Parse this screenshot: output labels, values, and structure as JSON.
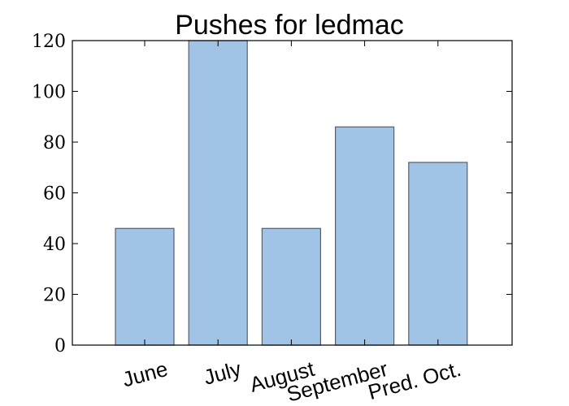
{
  "chart_data": {
    "type": "bar",
    "title": "Pushes for ledmac",
    "xlabel": "",
    "ylabel": "",
    "categories": [
      "June",
      "July",
      "August",
      "September",
      "Pred. Oct."
    ],
    "values": [
      46,
      120,
      46,
      86,
      72
    ],
    "ylim": [
      0,
      120
    ],
    "yticks": [
      "0",
      "20",
      "40",
      "60",
      "80",
      "100",
      "120"
    ],
    "grid": false,
    "legend": "none",
    "bar_color": "#a1c4e6",
    "bar_edge_color": "#55606b"
  }
}
